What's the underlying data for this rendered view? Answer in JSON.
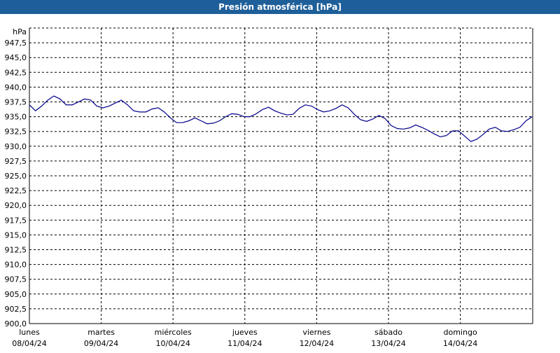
{
  "chart_data": {
    "type": "line",
    "title": "Presión atmosférica [hPa]",
    "ylabel": "hPa",
    "ylim": [
      900,
      950
    ],
    "y_ticks": [
      "900,0",
      "902,5",
      "905,0",
      "907,5",
      "910,0",
      "912,5",
      "915,0",
      "917,5",
      "920,0",
      "922,5",
      "925,0",
      "927,5",
      "930,0",
      "932,5",
      "935,0",
      "937,5",
      "940,0",
      "942,5",
      "945,0",
      "947,5"
    ],
    "y_tick_values": [
      900,
      902.5,
      905,
      907.5,
      910,
      912.5,
      915,
      917.5,
      920,
      922.5,
      925,
      927.5,
      930,
      932.5,
      935,
      937.5,
      940,
      942.5,
      945,
      947.5
    ],
    "x_range_days": [
      0,
      7
    ],
    "x_categories": [
      {
        "day": "lunes",
        "date": "08/04/24"
      },
      {
        "day": "martes",
        "date": "09/04/24"
      },
      {
        "day": "miércoles",
        "date": "10/04/24"
      },
      {
        "day": "jueves",
        "date": "11/04/24"
      },
      {
        "day": "viernes",
        "date": "12/04/24"
      },
      {
        "day": "sábado",
        "date": "13/04/24"
      },
      {
        "day": "domingo",
        "date": "14/04/24"
      }
    ],
    "grid": true,
    "line_color": "#00008b",
    "series": [
      {
        "points": [
          [
            0.0,
            937.0
          ],
          [
            0.1,
            936.0
          ],
          [
            0.2,
            936.8
          ],
          [
            0.3,
            937.8
          ],
          [
            0.4,
            938.5
          ],
          [
            0.5,
            938.0
          ],
          [
            0.6,
            937.0
          ],
          [
            0.7,
            937.0
          ],
          [
            0.8,
            937.5
          ],
          [
            0.9,
            938.0
          ],
          [
            1.0,
            937.8
          ],
          [
            1.1,
            936.8
          ],
          [
            1.2,
            936.5
          ],
          [
            1.3,
            936.8
          ],
          [
            1.4,
            937.3
          ],
          [
            1.5,
            937.8
          ],
          [
            1.6,
            937.0
          ],
          [
            1.7,
            936.0
          ],
          [
            1.8,
            935.8
          ],
          [
            1.9,
            935.8
          ],
          [
            2.0,
            936.3
          ],
          [
            2.1,
            936.5
          ],
          [
            2.2,
            935.8
          ],
          [
            2.3,
            934.8
          ],
          [
            2.4,
            934.0
          ],
          [
            2.5,
            934.0
          ],
          [
            2.6,
            934.3
          ],
          [
            2.7,
            934.8
          ],
          [
            2.8,
            934.3
          ],
          [
            2.9,
            933.8
          ],
          [
            3.0,
            933.9
          ],
          [
            3.1,
            934.3
          ],
          [
            3.2,
            935.0
          ],
          [
            3.3,
            935.5
          ],
          [
            3.4,
            935.4
          ],
          [
            3.5,
            935.0
          ],
          [
            3.6,
            935.0
          ],
          [
            3.7,
            935.5
          ],
          [
            3.8,
            936.2
          ],
          [
            3.9,
            936.6
          ],
          [
            4.0,
            936.0
          ],
          [
            4.1,
            935.6
          ],
          [
            4.2,
            935.3
          ],
          [
            4.3,
            935.4
          ],
          [
            4.4,
            936.4
          ],
          [
            4.5,
            937.0
          ],
          [
            4.6,
            936.8
          ],
          [
            4.7,
            936.2
          ],
          [
            4.8,
            935.8
          ],
          [
            4.9,
            936.0
          ],
          [
            5.0,
            936.4
          ],
          [
            5.1,
            937.0
          ],
          [
            5.2,
            936.5
          ],
          [
            5.3,
            935.4
          ],
          [
            5.4,
            934.5
          ],
          [
            5.5,
            934.2
          ],
          [
            5.6,
            934.6
          ],
          [
            5.7,
            935.2
          ],
          [
            5.8,
            934.7
          ],
          [
            5.9,
            933.5
          ],
          [
            6.0,
            933.0
          ],
          [
            6.1,
            932.9
          ],
          [
            6.2,
            933.1
          ],
          [
            6.3,
            933.6
          ],
          [
            6.4,
            933.2
          ],
          [
            6.5,
            932.7
          ],
          [
            6.6,
            932.1
          ],
          [
            6.7,
            931.6
          ],
          [
            6.8,
            931.8
          ],
          [
            6.9,
            932.6
          ],
          [
            7.0,
            932.6
          ],
          [
            7.1,
            931.7
          ],
          [
            7.2,
            930.8
          ],
          [
            7.3,
            931.2
          ],
          [
            7.4,
            932.0
          ],
          [
            7.5,
            932.9
          ],
          [
            7.6,
            933.2
          ],
          [
            7.7,
            932.6
          ],
          [
            7.8,
            932.5
          ],
          [
            7.9,
            932.8
          ],
          [
            8.0,
            933.2
          ],
          [
            8.1,
            934.3
          ],
          [
            8.2,
            935.0
          ]
        ]
      }
    ]
  }
}
